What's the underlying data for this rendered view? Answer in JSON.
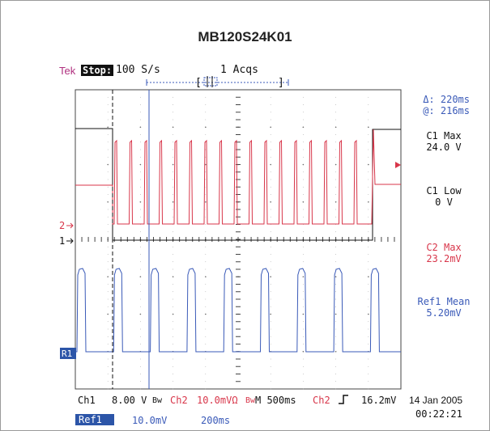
{
  "title": "MB120S24K01",
  "status": {
    "brand": "Tek",
    "state": "Stop:",
    "sample_rate": "100 S/s",
    "acquisitions": "1 Acqs"
  },
  "cursor": {
    "delta": "Δ: 220ms",
    "at": "@: 216ms"
  },
  "measurements": [
    {
      "label": "C1 Max",
      "value": "24.0 V",
      "color": "#111111"
    },
    {
      "label": "C1 Low",
      "value": "0 V",
      "color": "#111111"
    },
    {
      "label": "C2 Max",
      "value": "23.2mV",
      "color": "#d8364a"
    },
    {
      "label": "Ref1 Mean",
      "value": "5.20mV",
      "color": "#3a5ab8"
    }
  ],
  "markers": {
    "ch2": "2",
    "ch1": "1",
    "ref1": "R1"
  },
  "settings": {
    "ch1_label": "Ch1",
    "ch1_scale": "8.00 V",
    "bw_icon": "Bw",
    "ch2_label": "Ch2",
    "ch2_scale": "10.0mVΩ",
    "bw2_icon": "Bw",
    "timebase": "M 500ms",
    "trigger_source": "Ch2",
    "trigger_slope_icon": "rising-edge-icon",
    "trigger_level": "16.2mV",
    "ref1_label": "Ref1",
    "ref1_scale": "10.0mV",
    "ref1_time": "200ms"
  },
  "datetime": {
    "date": "14 Jan 2005",
    "time": "00:22:21"
  },
  "colors": {
    "ch1": "#111111",
    "ch2": "#d8364a",
    "ref1": "#3a5ab8",
    "tek": "#b0307f",
    "grid": "#333333"
  }
}
